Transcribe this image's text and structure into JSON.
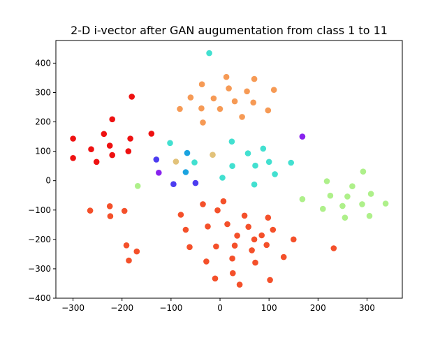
{
  "chart_data": {
    "type": "scatter",
    "title": "2-D i-vector after GAN augumentation from class 1 to 11",
    "xlabel": "",
    "ylabel": "",
    "xlim": [
      -335,
      372
    ],
    "ylim": [
      -400,
      477
    ],
    "xticks": [
      -300,
      -200,
      -100,
      0,
      100,
      200,
      300
    ],
    "yticks": [
      -400,
      -300,
      -200,
      -100,
      0,
      100,
      200,
      300,
      400
    ],
    "grid": false,
    "legend": "none",
    "series": [
      {
        "color": "#ee1111",
        "x": [
          -300,
          -300,
          -263,
          -252,
          -237,
          -225,
          -220,
          -220,
          -187,
          -183,
          -180,
          -140
        ],
        "y": [
          143,
          77,
          107,
          64,
          159,
          119,
          209,
          87,
          100,
          143,
          286,
          160
        ]
      },
      {
        "color": "#f4502a",
        "x": [
          -265,
          -225,
          -224,
          -195,
          -191,
          -186,
          -170
        ],
        "y": [
          -102,
          -87,
          -121,
          -103,
          -220,
          -272,
          -241
        ]
      },
      {
        "color": "#f4502a",
        "x": [
          -80,
          -70,
          -62,
          -35,
          -28,
          -25,
          -10,
          -8,
          -5,
          7,
          15,
          25,
          26,
          30,
          35,
          40,
          50,
          58,
          65,
          70,
          72,
          85,
          95,
          98,
          102,
          108,
          130,
          150,
          232
        ],
        "y": [
          -116,
          -167,
          -226,
          -80,
          -275,
          -156,
          -333,
          -224,
          -101,
          -70,
          -148,
          -265,
          -315,
          -221,
          -187,
          -354,
          -119,
          -157,
          -237,
          -200,
          -279,
          -186,
          -219,
          -126,
          -338,
          -167,
          -260,
          -200,
          -230
        ]
      },
      {
        "color": "#f69a55",
        "x": [
          -82,
          -60,
          -38,
          -37,
          -35,
          -13,
          0,
          13,
          18,
          30,
          45,
          55,
          68,
          70,
          98,
          110
        ],
        "y": [
          244,
          283,
          246,
          328,
          198,
          280,
          244,
          353,
          314,
          270,
          217,
          304,
          266,
          346,
          239,
          309
        ]
      },
      {
        "color": "#e2c27a",
        "x": [
          -90,
          -15
        ],
        "y": [
          65,
          88
        ]
      },
      {
        "color": "#42e0d0",
        "x": [
          -102,
          -52,
          5,
          24,
          25,
          57,
          72,
          88,
          100,
          112,
          145
        ],
        "y": [
          128,
          62,
          10,
          133,
          50,
          93,
          51,
          109,
          64,
          22,
          61
        ]
      },
      {
        "color": "#42e0d0",
        "x": [
          -22,
          70
        ],
        "y": [
          434,
          -13
        ]
      },
      {
        "color": "#1aa3e0",
        "x": [
          -67,
          -70
        ],
        "y": [
          94,
          29
        ]
      },
      {
        "color": "#4c3cf0",
        "x": [
          -130,
          -95,
          -50
        ],
        "y": [
          72,
          -12,
          -8
        ]
      },
      {
        "color": "#8822ee",
        "x": [
          -125,
          168
        ],
        "y": [
          27,
          150
        ]
      },
      {
        "color": "#aef08a",
        "x": [
          -168,
          168,
          210,
          218,
          225,
          250,
          255,
          260,
          270,
          290,
          292,
          305,
          308,
          338
        ],
        "y": [
          -18,
          -63,
          -96,
          -2,
          -51,
          -86,
          -126,
          -54,
          -19,
          -80,
          31,
          -120,
          -45,
          -78
        ]
      }
    ]
  }
}
